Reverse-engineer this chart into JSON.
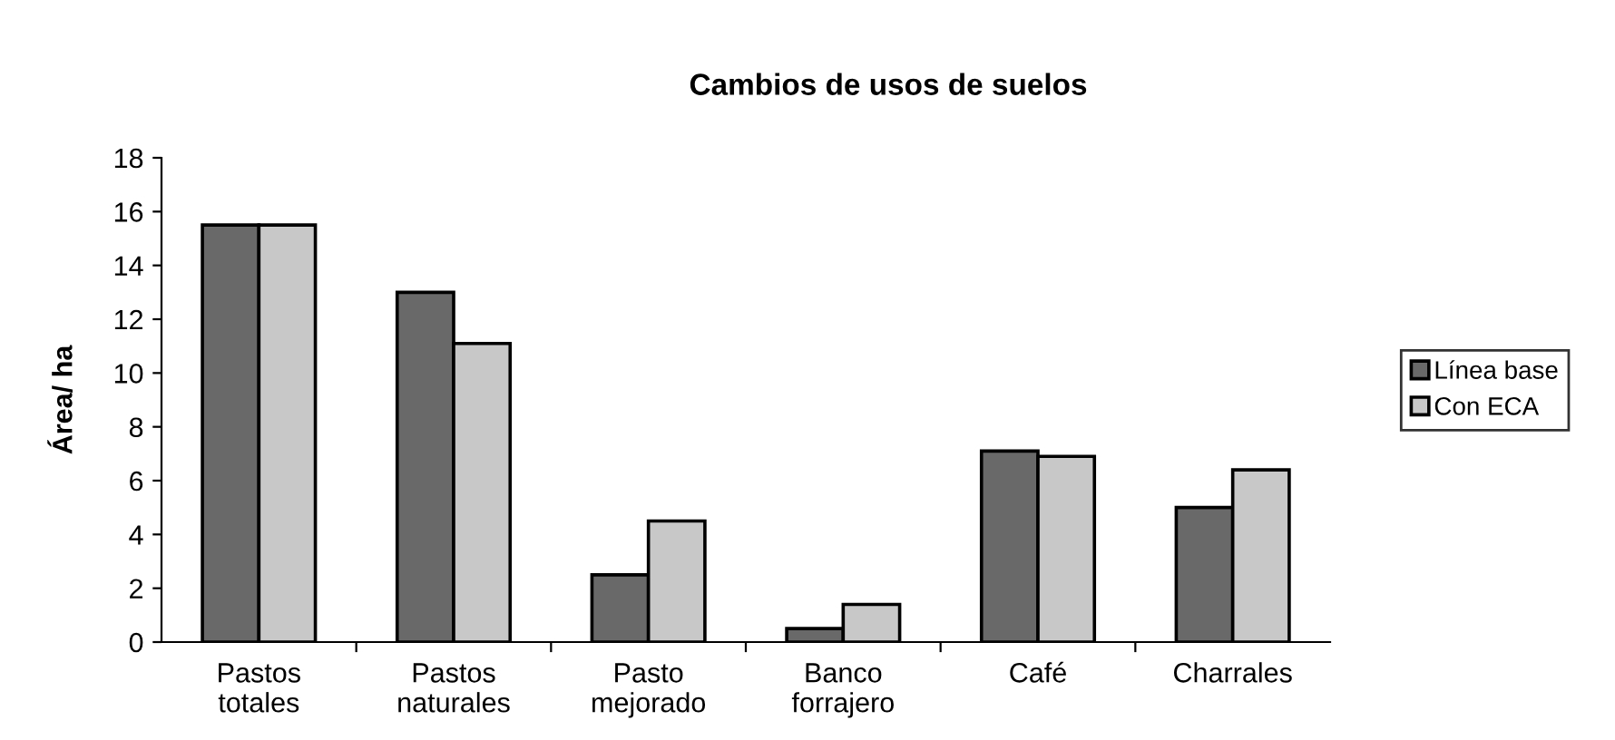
{
  "chart_data": {
    "type": "bar",
    "title": "Cambios de usos de suelos",
    "ylabel": "Área/ ha",
    "categories": [
      "Pastos\ntotales",
      "Pastos\nnaturales",
      "Pasto\nmejorado",
      "Banco\nforrajero",
      "Café",
      "Charrales"
    ],
    "series": [
      {
        "name": "Línea base",
        "color": "#696969",
        "values": [
          15.5,
          13,
          2.5,
          0.5,
          7.1,
          5.0
        ]
      },
      {
        "name": "Con ECA",
        "color": "#c8c8c8",
        "values": [
          15.5,
          11.1,
          4.5,
          1.4,
          6.9,
          6.4
        ]
      }
    ],
    "ylim": [
      0,
      18
    ],
    "yticks": [
      0,
      2,
      4,
      6,
      8,
      10,
      12,
      14,
      16,
      18
    ],
    "grid": false,
    "legend": "right"
  }
}
